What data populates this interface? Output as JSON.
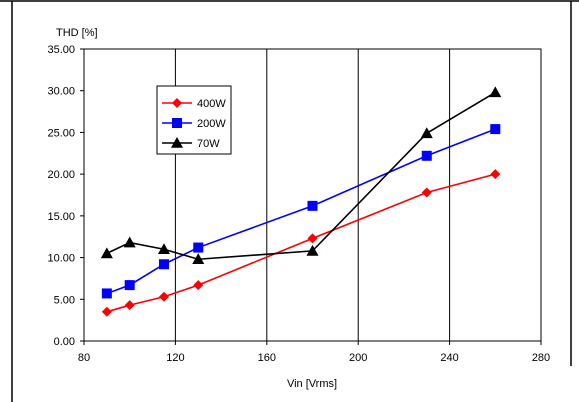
{
  "chart_data": {
    "type": "line",
    "title": "",
    "xlabel": "Vin [Vrms]",
    "ylabel": "THD [%]",
    "xlim": [
      80,
      280
    ],
    "ylim": [
      0,
      35
    ],
    "xticks": [
      80,
      120,
      160,
      200,
      240,
      280
    ],
    "yticks": [
      0,
      5,
      10,
      15,
      20,
      25,
      30,
      35
    ],
    "ytick_labels": [
      "0.00",
      "5.00",
      "10.00",
      "15.00",
      "20.00",
      "25.00",
      "30.00",
      "35.00"
    ],
    "grid": "vertical",
    "legend_position": "upper-left inside plot",
    "series": [
      {
        "name": "400W",
        "color": "#ff0000",
        "marker": "diamond",
        "x": [
          90,
          100,
          115,
          130,
          180,
          230,
          260
        ],
        "y": [
          3.5,
          4.3,
          5.3,
          6.7,
          12.3,
          17.8,
          20.0
        ]
      },
      {
        "name": "200W",
        "color": "#0000ff",
        "marker": "square",
        "x": [
          90,
          100,
          115,
          130,
          180,
          230,
          260
        ],
        "y": [
          5.7,
          6.7,
          9.2,
          11.2,
          16.2,
          22.2,
          25.4
        ]
      },
      {
        "name": "70W",
        "color": "#000000",
        "marker": "triangle",
        "x": [
          90,
          100,
          115,
          130,
          180,
          230,
          260
        ],
        "y": [
          10.5,
          11.8,
          11.0,
          9.8,
          10.8,
          24.9,
          29.8
        ]
      }
    ]
  }
}
